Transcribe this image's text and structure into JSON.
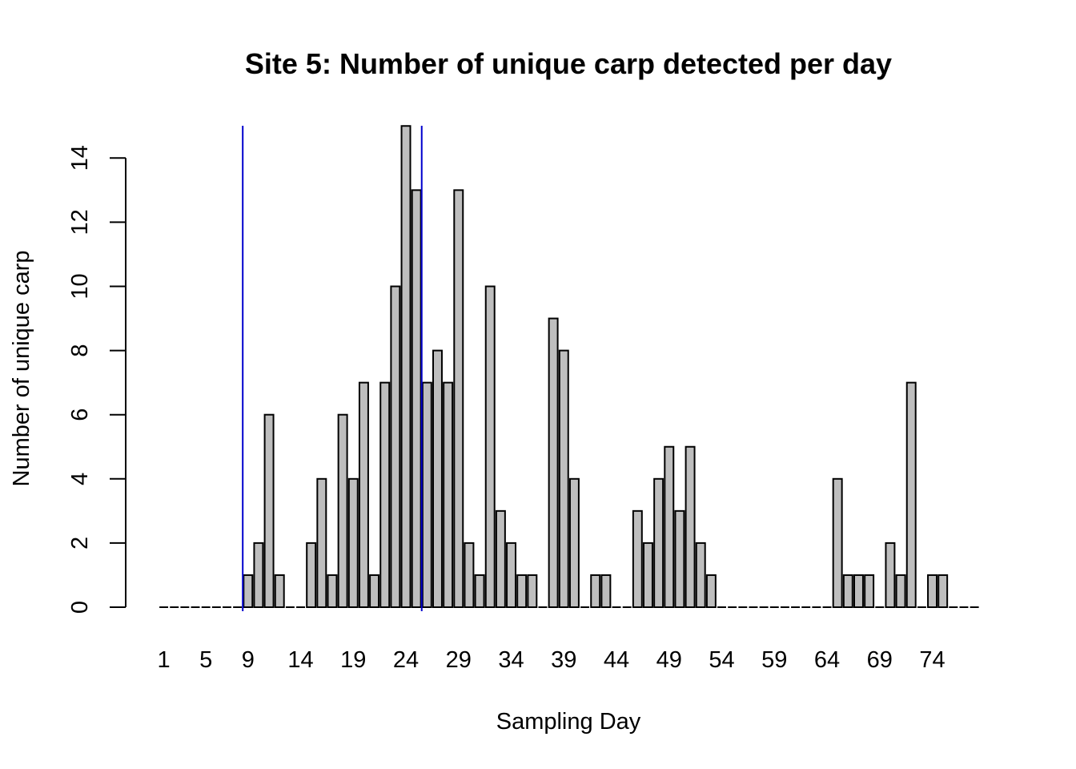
{
  "chart_data": {
    "type": "bar",
    "title": "Site 5: Number of unique carp detected per day",
    "xlabel": "Sampling Day",
    "ylabel": "Number of unique carp",
    "ylim": [
      0,
      15
    ],
    "y_ticks": [
      0,
      2,
      4,
      6,
      8,
      10,
      12,
      14
    ],
    "x_tick_labels": [
      "1",
      "5",
      "9",
      "14",
      "19",
      "24",
      "29",
      "34",
      "39",
      "44",
      "49",
      "54",
      "59",
      "64",
      "69",
      "74"
    ],
    "categories": [
      "1",
      "2",
      "3",
      "4",
      "5",
      "6",
      "7",
      "8",
      "9",
      "10",
      "11",
      "12",
      "13",
      "14",
      "15",
      "16",
      "17",
      "18",
      "19",
      "20",
      "21",
      "22",
      "23",
      "24",
      "25",
      "26",
      "27",
      "28",
      "29",
      "30",
      "31",
      "32",
      "33",
      "34",
      "35",
      "36",
      "37",
      "38",
      "39",
      "40",
      "41",
      "42",
      "43",
      "44",
      "45",
      "46",
      "47",
      "48",
      "49",
      "50",
      "51",
      "52",
      "53",
      "54",
      "55",
      "56",
      "57",
      "58",
      "59",
      "60",
      "61",
      "62",
      "63",
      "64",
      "65",
      "66",
      "67",
      "68",
      "69",
      "70",
      "71",
      "72",
      "73",
      "74",
      "75",
      "76",
      "77",
      "78"
    ],
    "values": [
      0,
      0,
      0,
      0,
      0,
      0,
      0,
      0,
      1,
      2,
      6,
      1,
      0,
      0,
      2,
      4,
      1,
      6,
      4,
      7,
      1,
      7,
      10,
      15,
      13,
      7,
      8,
      7,
      13,
      2,
      1,
      10,
      3,
      2,
      1,
      1,
      0,
      9,
      8,
      4,
      0,
      1,
      1,
      0,
      0,
      3,
      2,
      4,
      5,
      3,
      5,
      2,
      1,
      0,
      0,
      0,
      0,
      0,
      0,
      0,
      0,
      0,
      0,
      0,
      4,
      1,
      1,
      1,
      0,
      2,
      1,
      7,
      0,
      1,
      1,
      0,
      0,
      0
    ],
    "bar_color": "#bebebe",
    "reference_lines": [
      {
        "x": 9,
        "color": "#0000cd"
      },
      {
        "x": 26,
        "color": "#0000cd"
      }
    ],
    "grid": false,
    "legend": "none"
  }
}
